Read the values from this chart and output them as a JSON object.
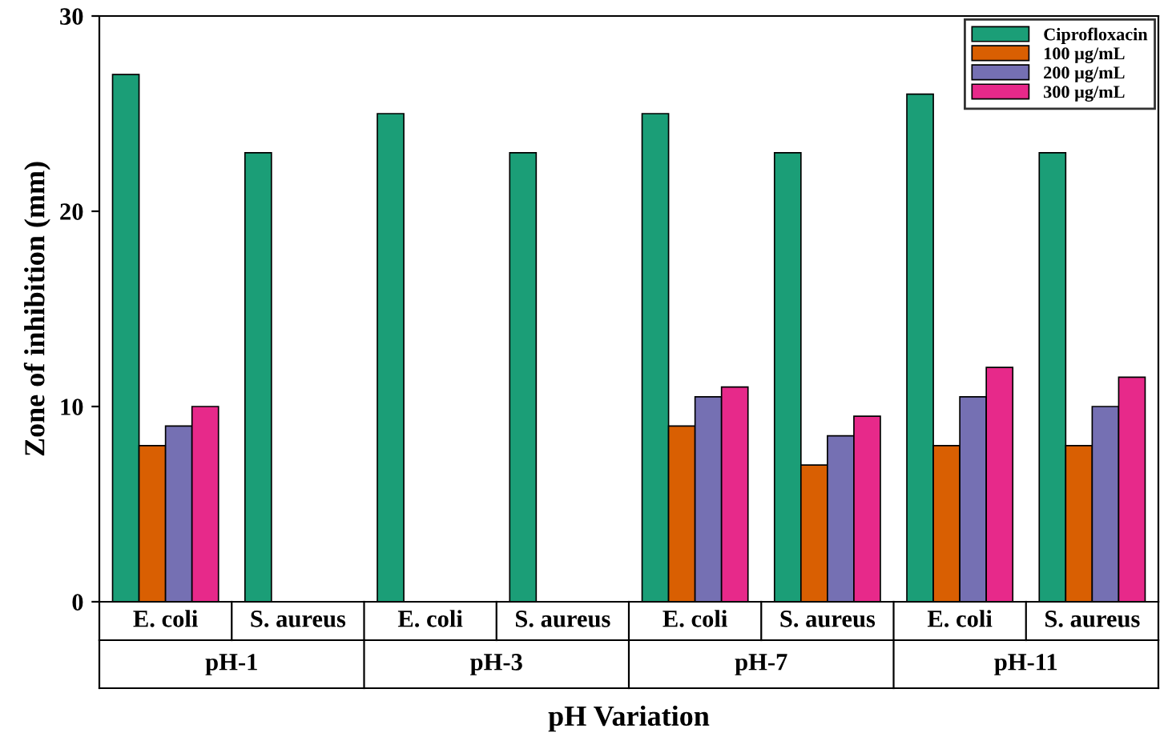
{
  "chart_data": {
    "type": "bar",
    "xlabel": "pH Variation",
    "ylabel": "Zone of inhibition (mm)",
    "categories": [
      "E. coli",
      "S. aureus",
      "E. coli",
      "S. aureus",
      "E. coli",
      "S. aureus",
      "E. coli",
      "S. aureus"
    ],
    "annotations": [
      "pH-1",
      "pH-3",
      "pH-7",
      "pH-11"
    ],
    "series": [
      {
        "name": "Ciprofloxacin",
        "color": "#1b9e77",
        "values": [
          27,
          23,
          25,
          23,
          25,
          23,
          26,
          23
        ]
      },
      {
        "name": "100 µg/mL",
        "color": "#d95f02",
        "values": [
          8,
          null,
          null,
          null,
          9,
          7,
          8,
          8
        ]
      },
      {
        "name": "200 µg/mL",
        "color": "#7570b3",
        "values": [
          9,
          null,
          null,
          null,
          10.5,
          8.5,
          10.5,
          10
        ]
      },
      {
        "name": "300 µg/mL",
        "color": "#e7298a",
        "values": [
          10,
          null,
          null,
          null,
          11,
          9.5,
          12,
          11.5
        ]
      }
    ],
    "ylim": [
      0,
      30
    ],
    "yticks": [
      0,
      10,
      20,
      30
    ],
    "grid": false,
    "legend": "top right"
  }
}
